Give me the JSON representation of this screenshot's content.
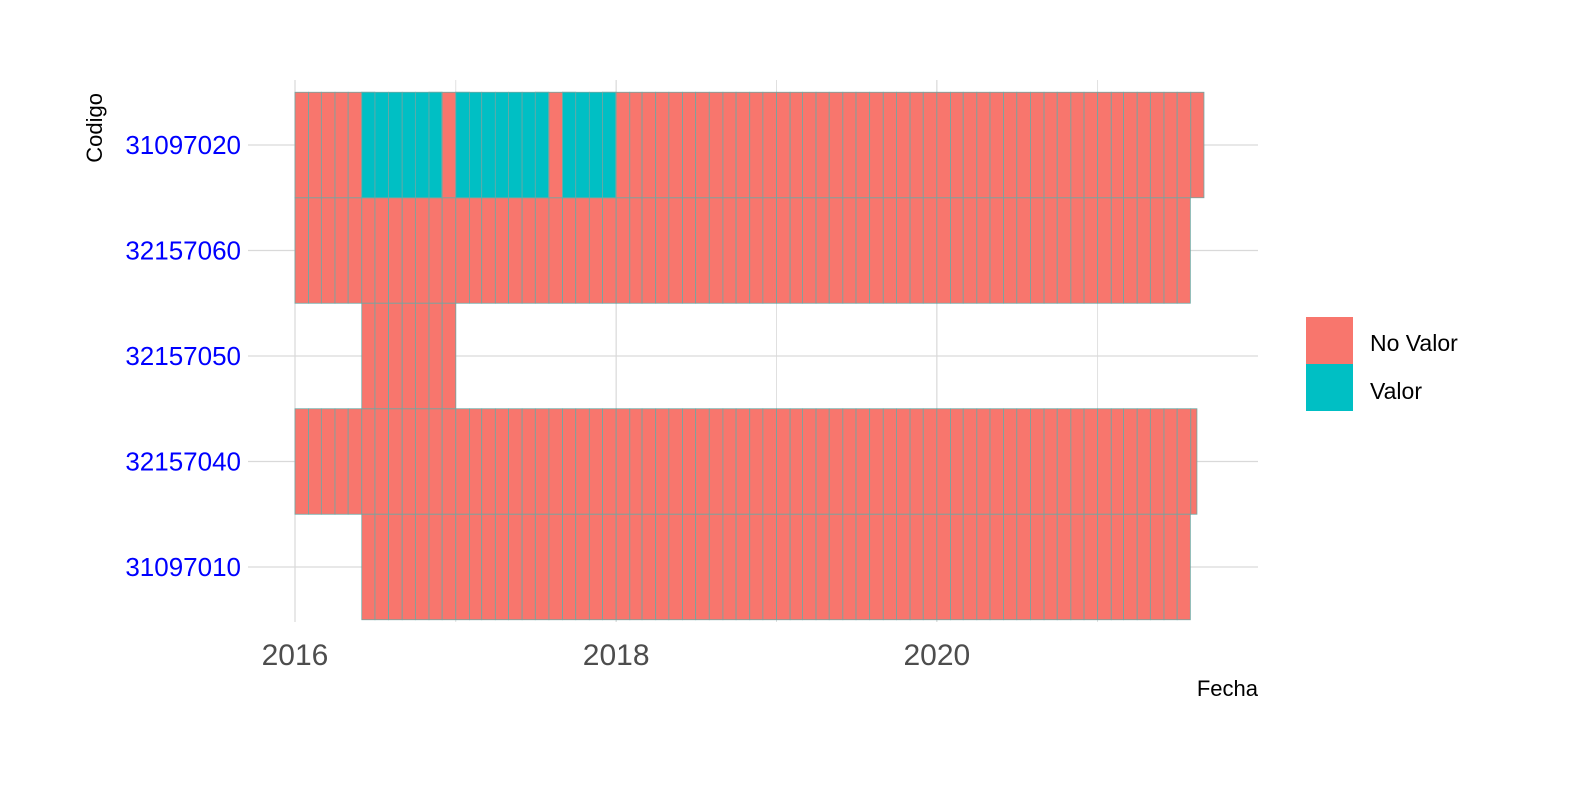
{
  "chart_data": {
    "type": "heatmap",
    "title": "",
    "xlabel": "Fecha",
    "ylabel": "Codigo",
    "xlim": [
      "2016-01-01",
      "2022-01-01"
    ],
    "x_ticks": [
      "2016",
      "2018",
      "2020"
    ],
    "grid": true,
    "legend_position": "right",
    "categories": [
      "31097020",
      "32157060",
      "32157050",
      "32157040",
      "31097010"
    ],
    "colors": {
      "No Valor": "#F8766D",
      "Valor": "#00BFC4",
      "tick_label": "#0000FF",
      "grid": "#D9D9D9"
    },
    "legend": [
      {
        "label": "No Valor",
        "color": "#F8766D"
      },
      {
        "label": "Valor",
        "color": "#00BFC4"
      }
    ],
    "series": [
      {
        "code": "31097020",
        "no_valor": [
          [
            "2016-01-01",
            "2016-06-30"
          ],
          [
            "2016-11-30",
            "2017-01-31"
          ],
          [
            "2017-07-31",
            "2017-09-30"
          ],
          [
            "2017-12-31",
            "2021-08-31"
          ]
        ],
        "valor": [
          [
            "2016-06-01",
            "2016-11-30"
          ],
          [
            "2017-01-31",
            "2017-07-31"
          ],
          [
            "2017-09-30",
            "2017-12-31"
          ]
        ]
      },
      {
        "code": "32157060",
        "no_valor": [
          [
            "2016-01-01",
            "2021-07-31"
          ]
        ],
        "valor": []
      },
      {
        "code": "32157050",
        "no_valor": [
          [
            "2016-06-01",
            "2017-01-01"
          ]
        ],
        "valor": []
      },
      {
        "code": "32157040",
        "no_valor": [
          [
            "2016-01-01",
            "2021-08-15"
          ]
        ],
        "valor": []
      },
      {
        "code": "31097010",
        "no_valor": [
          [
            "2016-06-01",
            "2021-07-31"
          ]
        ],
        "valor": []
      }
    ]
  }
}
